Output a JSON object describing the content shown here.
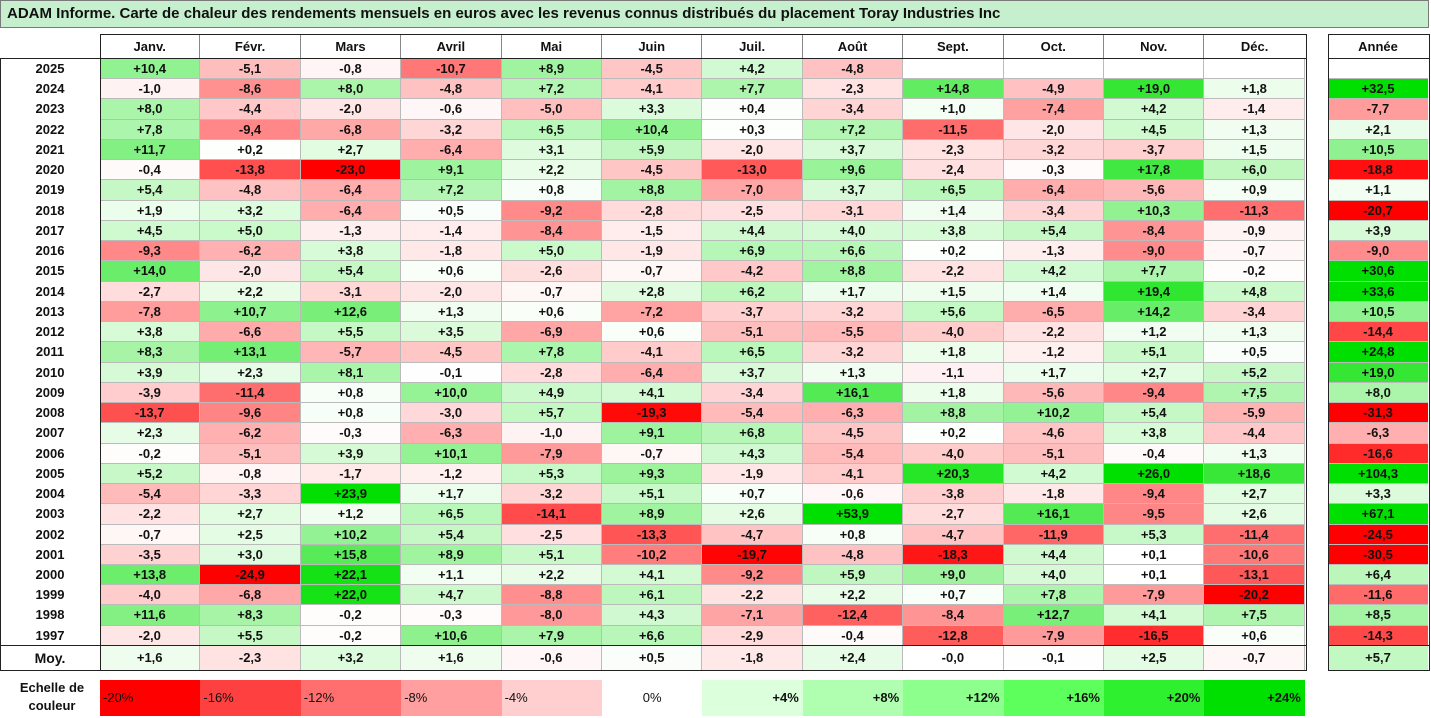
{
  "title": "ADAM Informe. Carte de chaleur des rendements mensuels en euros avec les revenus connus distribués du placement Toray Industries Inc",
  "chart_data": {
    "type": "heatmap",
    "columns": [
      "Janv.",
      "Févr.",
      "Mars",
      "Avril",
      "Mai",
      "Juin",
      "Juil.",
      "Août",
      "Sept.",
      "Oct.",
      "Nov.",
      "Déc."
    ],
    "year_header": "Année",
    "average_label": "Moy.",
    "rows": [
      {
        "year": "2025",
        "months": [
          "+10,4",
          "-5,1",
          "-0,8",
          "-10,7",
          "+8,9",
          "-4,5",
          "+4,2",
          "-4,8",
          "",
          "",
          "",
          ""
        ],
        "annual": ""
      },
      {
        "year": "2024",
        "months": [
          "-1,0",
          "-8,6",
          "+8,0",
          "-4,8",
          "+7,2",
          "-4,1",
          "+7,7",
          "-2,3",
          "+14,8",
          "-4,9",
          "+19,0",
          "+1,8"
        ],
        "annual": "+32,5"
      },
      {
        "year": "2023",
        "months": [
          "+8,0",
          "-4,4",
          "-2,0",
          "-0,6",
          "-5,0",
          "+3,3",
          "+0,4",
          "-3,4",
          "+1,0",
          "-7,4",
          "+4,2",
          "-1,4"
        ],
        "annual": "-7,7"
      },
      {
        "year": "2022",
        "months": [
          "+7,8",
          "-9,4",
          "-6,8",
          "-3,2",
          "+6,5",
          "+10,4",
          "+0,3",
          "+7,2",
          "-11,5",
          "-2,0",
          "+4,5",
          "+1,3"
        ],
        "annual": "+2,1"
      },
      {
        "year": "2021",
        "months": [
          "+11,7",
          "+0,2",
          "+2,7",
          "-6,4",
          "+3,1",
          "+5,9",
          "-2,0",
          "+3,7",
          "-2,3",
          "-3,2",
          "-3,7",
          "+1,5"
        ],
        "annual": "+10,5"
      },
      {
        "year": "2020",
        "months": [
          "-0,4",
          "-13,8",
          "-23,0",
          "+9,1",
          "+2,2",
          "-4,5",
          "-13,0",
          "+9,6",
          "-2,4",
          "-0,3",
          "+17,8",
          "+6,0"
        ],
        "annual": "-18,8"
      },
      {
        "year": "2019",
        "months": [
          "+5,4",
          "-4,8",
          "-6,4",
          "+7,2",
          "+0,8",
          "+8,8",
          "-7,0",
          "+3,7",
          "+6,5",
          "-6,4",
          "-5,6",
          "+0,9"
        ],
        "annual": "+1,1"
      },
      {
        "year": "2018",
        "months": [
          "+1,9",
          "+3,2",
          "-6,4",
          "+0,5",
          "-9,2",
          "-2,8",
          "-2,5",
          "-3,1",
          "+1,4",
          "-3,4",
          "+10,3",
          "-11,3"
        ],
        "annual": "-20,7"
      },
      {
        "year": "2017",
        "months": [
          "+4,5",
          "+5,0",
          "-1,3",
          "-1,4",
          "-8,4",
          "-1,5",
          "+4,4",
          "+4,0",
          "+3,8",
          "+5,4",
          "-8,4",
          "-0,9"
        ],
        "annual": "+3,9"
      },
      {
        "year": "2016",
        "months": [
          "-9,3",
          "-6,2",
          "+3,8",
          "-1,8",
          "+5,0",
          "-1,9",
          "+6,9",
          "+6,6",
          "+0,2",
          "-1,3",
          "-9,0",
          "-0,7"
        ],
        "annual": "-9,0"
      },
      {
        "year": "2015",
        "months": [
          "+14,0",
          "-2,0",
          "+5,4",
          "+0,6",
          "-2,6",
          "-0,7",
          "-4,2",
          "+8,8",
          "-2,2",
          "+4,2",
          "+7,7",
          "-0,2"
        ],
        "annual": "+30,6"
      },
      {
        "year": "2014",
        "months": [
          "-2,7",
          "+2,2",
          "-3,1",
          "-2,0",
          "-0,7",
          "+2,8",
          "+6,2",
          "+1,7",
          "+1,5",
          "+1,4",
          "+19,4",
          "+4,8"
        ],
        "annual": "+33,6"
      },
      {
        "year": "2013",
        "months": [
          "-7,8",
          "+10,7",
          "+12,6",
          "+1,3",
          "+0,6",
          "-7,2",
          "-3,7",
          "-3,2",
          "+5,6",
          "-6,5",
          "+14,2",
          "-3,4"
        ],
        "annual": "+10,5"
      },
      {
        "year": "2012",
        "months": [
          "+3,8",
          "-6,6",
          "+5,5",
          "+3,5",
          "-6,9",
          "+0,6",
          "-5,1",
          "-5,5",
          "-4,0",
          "-2,2",
          "+1,2",
          "+1,3"
        ],
        "annual": "-14,4"
      },
      {
        "year": "2011",
        "months": [
          "+8,3",
          "+13,1",
          "-5,7",
          "-4,5",
          "+7,8",
          "-4,1",
          "+6,5",
          "-3,2",
          "+1,8",
          "-1,2",
          "+5,1",
          "+0,5"
        ],
        "annual": "+24,8"
      },
      {
        "year": "2010",
        "months": [
          "+3,9",
          "+2,3",
          "+8,1",
          "-0,1",
          "-2,8",
          "-6,4",
          "+3,7",
          "+1,3",
          "-1,1",
          "+1,7",
          "+2,7",
          "+5,2"
        ],
        "annual": "+19,0"
      },
      {
        "year": "2009",
        "months": [
          "-3,9",
          "-11,4",
          "+0,8",
          "+10,0",
          "+4,9",
          "+4,1",
          "-3,4",
          "+16,1",
          "+1,8",
          "-5,6",
          "-9,4",
          "+7,5"
        ],
        "annual": "+8,0"
      },
      {
        "year": "2008",
        "months": [
          "-13,7",
          "-9,6",
          "+0,8",
          "-3,0",
          "+5,7",
          "-19,3",
          "-5,4",
          "-6,3",
          "+8,8",
          "+10,2",
          "+5,4",
          "-5,9"
        ],
        "annual": "-31,3"
      },
      {
        "year": "2007",
        "months": [
          "+2,3",
          "-6,2",
          "-0,3",
          "-6,3",
          "-1,0",
          "+9,1",
          "+6,8",
          "-4,5",
          "+0,2",
          "-4,6",
          "+3,8",
          "-4,4"
        ],
        "annual": "-6,3"
      },
      {
        "year": "2006",
        "months": [
          "-0,2",
          "-5,1",
          "+3,9",
          "+10,1",
          "-7,9",
          "-0,7",
          "+4,3",
          "-5,4",
          "-4,0",
          "-5,1",
          "-0,4",
          "+1,3"
        ],
        "annual": "-16,6"
      },
      {
        "year": "2005",
        "months": [
          "+5,2",
          "-0,8",
          "-1,7",
          "-1,2",
          "+5,3",
          "+9,3",
          "-1,9",
          "-4,1",
          "+20,3",
          "+4,2",
          "+26,0",
          "+18,6"
        ],
        "annual": "+104,3"
      },
      {
        "year": "2004",
        "months": [
          "-5,4",
          "-3,3",
          "+23,9",
          "+1,7",
          "-3,2",
          "+5,1",
          "+0,7",
          "-0,6",
          "-3,8",
          "-1,8",
          "-9,4",
          "+2,7"
        ],
        "annual": "+3,3"
      },
      {
        "year": "2003",
        "months": [
          "-2,2",
          "+2,7",
          "+1,2",
          "+6,5",
          "-14,1",
          "+8,9",
          "+2,6",
          "+53,9",
          "-2,7",
          "+16,1",
          "-9,5",
          "+2,6"
        ],
        "annual": "+67,1"
      },
      {
        "year": "2002",
        "months": [
          "-0,7",
          "+2,5",
          "+10,2",
          "+5,4",
          "-2,5",
          "-13,3",
          "-4,7",
          "+0,8",
          "-4,7",
          "-11,9",
          "+5,3",
          "-11,4"
        ],
        "annual": "-24,5"
      },
      {
        "year": "2001",
        "months": [
          "-3,5",
          "+3,0",
          "+15,8",
          "+8,9",
          "+5,1",
          "-10,2",
          "-19,7",
          "-4,8",
          "-18,3",
          "+4,4",
          "+0,1",
          "-10,6"
        ],
        "annual": "-30,5"
      },
      {
        "year": "2000",
        "months": [
          "+13,8",
          "-24,9",
          "+22,1",
          "+1,1",
          "+2,2",
          "+4,1",
          "-9,2",
          "+5,9",
          "+9,0",
          "+4,0",
          "+0,1",
          "-13,1"
        ],
        "annual": "+6,4"
      },
      {
        "year": "1999",
        "months": [
          "-4,0",
          "-6,8",
          "+22,0",
          "+4,7",
          "-8,8",
          "+6,1",
          "-2,2",
          "+2,2",
          "+0,7",
          "+7,8",
          "-7,9",
          "-20,2"
        ],
        "annual": "-11,6"
      },
      {
        "year": "1998",
        "months": [
          "+11,6",
          "+8,3",
          "-0,2",
          "-0,3",
          "-8,0",
          "+4,3",
          "-7,1",
          "-12,4",
          "-8,4",
          "+12,7",
          "+4,1",
          "+7,5"
        ],
        "annual": "+8,5"
      },
      {
        "year": "1997",
        "months": [
          "-2,0",
          "+5,5",
          "-0,2",
          "+10,6",
          "+7,9",
          "+6,6",
          "-2,9",
          "-0,4",
          "-12,8",
          "-7,9",
          "-16,5",
          "+0,6"
        ],
        "annual": "-14,3"
      }
    ],
    "averages": [
      "+1,6",
      "-2,3",
      "+3,2",
      "+1,6",
      "-0,6",
      "+0,5",
      "-1,8",
      "+2,4",
      "-0,0",
      "-0,1",
      "+2,5",
      "-0,7"
    ],
    "average_annual": "+5,7",
    "color_scale": {
      "label": "Echelle de couleur",
      "stops": [
        {
          "label": "-20%",
          "value": -20,
          "color": "#ff0000",
          "align": "left"
        },
        {
          "label": "-16%",
          "value": -16,
          "color": "#ff4040",
          "align": "left"
        },
        {
          "label": "-12%",
          "value": -12,
          "color": "#ff6f6f",
          "align": "left"
        },
        {
          "label": "-8%",
          "value": -8,
          "color": "#ff9f9f",
          "align": "left"
        },
        {
          "label": "-4%",
          "value": -4,
          "color": "#ffcfcf",
          "align": "left"
        },
        {
          "label": "0%",
          "value": 0,
          "color": "#ffffff",
          "align": "center"
        },
        {
          "label": "+4%",
          "value": 4,
          "color": "#dcffdc",
          "align": "right"
        },
        {
          "label": "+8%",
          "value": 8,
          "color": "#b0ffb0",
          "align": "right"
        },
        {
          "label": "+12%",
          "value": 12,
          "color": "#8cff8c",
          "align": "right"
        },
        {
          "label": "+16%",
          "value": 16,
          "color": "#5cff5c",
          "align": "right"
        },
        {
          "label": "+20%",
          "value": 20,
          "color": "#2ef02e",
          "align": "right"
        },
        {
          "label": "+24%",
          "value": 24,
          "color": "#00e000",
          "align": "right"
        }
      ]
    }
  }
}
